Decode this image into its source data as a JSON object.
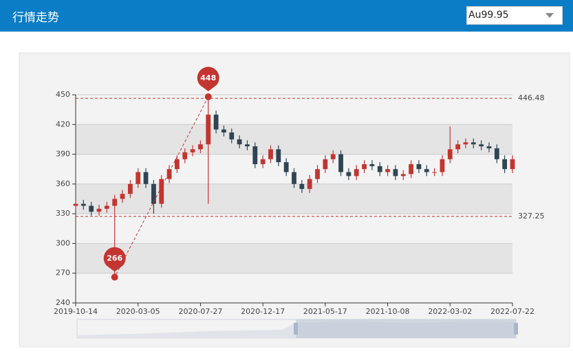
{
  "header": {
    "title": "行情走势",
    "select": "Au99.95"
  },
  "chart_data": {
    "type": "candlestick",
    "categories": [
      "2019-10-14",
      null,
      null,
      null,
      null,
      null,
      null,
      null,
      "2020-03-05",
      null,
      null,
      null,
      null,
      null,
      null,
      null,
      "2020-07-27",
      null,
      null,
      null,
      null,
      null,
      null,
      null,
      "2020-12-17",
      null,
      null,
      null,
      null,
      null,
      null,
      null,
      "2021-05-17",
      null,
      null,
      null,
      null,
      null,
      null,
      null,
      "2021-10-08",
      null,
      null,
      null,
      null,
      null,
      null,
      null,
      "2022-03-02",
      null,
      null,
      null,
      null,
      null,
      null,
      null,
      "2022-07-22"
    ],
    "open": [
      338,
      340,
      338,
      332,
      335,
      338,
      345,
      350,
      360,
      372,
      360,
      340,
      365,
      375,
      385,
      392,
      395,
      400,
      430,
      415,
      412,
      405,
      400,
      398,
      380,
      385,
      395,
      382,
      372,
      360,
      355,
      365,
      375,
      385,
      390,
      372,
      368,
      375,
      380,
      378,
      372,
      375,
      368,
      370,
      380,
      375,
      372,
      372,
      385,
      395,
      400,
      402,
      400,
      398,
      396,
      385,
      375
    ],
    "close": [
      340,
      338,
      332,
      335,
      338,
      345,
      350,
      360,
      372,
      360,
      340,
      365,
      375,
      385,
      392,
      395,
      400,
      430,
      415,
      412,
      405,
      400,
      398,
      380,
      385,
      395,
      382,
      372,
      360,
      355,
      365,
      375,
      385,
      390,
      372,
      368,
      375,
      380,
      378,
      372,
      375,
      368,
      370,
      380,
      375,
      372,
      372,
      385,
      395,
      400,
      402,
      400,
      398,
      396,
      385,
      375,
      385
    ],
    "low": [
      334,
      334,
      328,
      328,
      331,
      266,
      341,
      346,
      356,
      356,
      330,
      336,
      361,
      371,
      381,
      388,
      391,
      340,
      411,
      408,
      401,
      396,
      394,
      376,
      376,
      381,
      378,
      368,
      356,
      351,
      351,
      361,
      371,
      381,
      368,
      364,
      364,
      371,
      374,
      368,
      368,
      364,
      364,
      366,
      371,
      368,
      368,
      368,
      381,
      391,
      396,
      396,
      394,
      392,
      381,
      371,
      371
    ],
    "high": [
      344,
      344,
      342,
      339,
      342,
      349,
      354,
      364,
      376,
      376,
      364,
      369,
      379,
      389,
      396,
      399,
      404,
      448,
      434,
      419,
      416,
      409,
      404,
      402,
      389,
      399,
      399,
      386,
      376,
      364,
      369,
      379,
      389,
      394,
      394,
      376,
      379,
      384,
      384,
      382,
      379,
      379,
      374,
      384,
      384,
      379,
      376,
      389,
      418,
      404,
      406,
      406,
      404,
      402,
      400,
      389,
      389
    ],
    "up_color": "#c23531",
    "down_color": "#2f4554",
    "ylim": [
      240,
      450
    ],
    "yticks": [
      240,
      270,
      300,
      330,
      360,
      390,
      420,
      450
    ],
    "mark_points": [
      448,
      266
    ],
    "mark_lines": [
      446.48,
      327.25
    ],
    "grid": true
  }
}
